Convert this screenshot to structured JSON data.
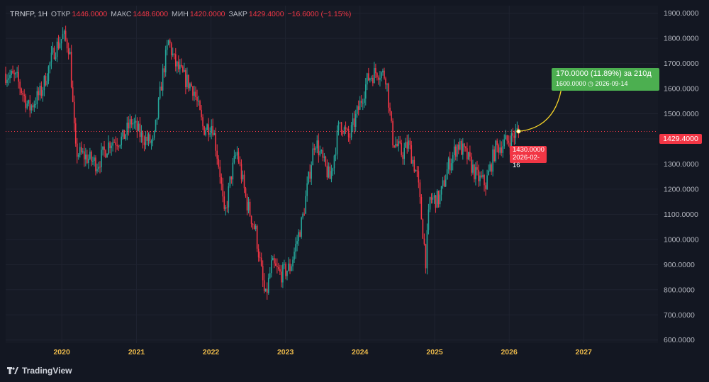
{
  "legend": {
    "symbol": "TRNFP, 1Н",
    "open_label": "ОТКР",
    "open": "1446.0000",
    "high_label": "МАКС",
    "high": "1448.6000",
    "low_label": "МИН",
    "low": "1420.0000",
    "close_label": "ЗАКР",
    "close": "1429.4000",
    "change": "−16.6000 (−1.15%)"
  },
  "labels": {
    "last_price": "1429.4000",
    "low_price": "1430.0000",
    "low_date": "2026-02-16",
    "target_line1": "170.0000 (11.89%) за 210д",
    "target_line2_price": "1600.0000",
    "target_line2_date": "2026-09-14"
  },
  "brand": "TradingView",
  "colors": {
    "background": "#131722",
    "up": "#26a69a",
    "down": "#f23645",
    "target": "#4caf50",
    "arrow": "#f5d328",
    "axis_text": "#b2b5be"
  },
  "chart_data": {
    "type": "candlestick",
    "title": "",
    "y_ticks": [
      "600.0000",
      "700.0000",
      "800.0000",
      "900.0000",
      "1000.0000",
      "1100.0000",
      "1200.0000",
      "1300.0000",
      "1400.0000",
      "1500.0000",
      "1600.0000",
      "1700.0000",
      "1800.0000",
      "1900.0000"
    ],
    "x_ticks": [
      "2020",
      "2021",
      "2022",
      "2023",
      "2024",
      "2025",
      "2026",
      "2027"
    ],
    "ylim": [
      588,
      1930
    ],
    "xlim": [
      "2019-04-01",
      "2027-12-31"
    ],
    "grid": true,
    "last_price": 1429.4,
    "projection": {
      "from_date": "2026-02-16",
      "from_price": 1430,
      "to_date": "2026-09-14",
      "to_price": 1600
    },
    "anchor_path": [
      [
        "2019-04-01",
        1660
      ],
      [
        "2019-06-01",
        1640
      ],
      [
        "2019-08-01",
        1520
      ],
      [
        "2019-10-01",
        1590
      ],
      [
        "2019-12-01",
        1750
      ],
      [
        "2020-01-15",
        1810
      ],
      [
        "2020-02-15",
        1760
      ],
      [
        "2020-03-15",
        1350
      ],
      [
        "2020-05-01",
        1330
      ],
      [
        "2020-07-01",
        1300
      ],
      [
        "2020-09-01",
        1390
      ],
      [
        "2020-11-01",
        1400
      ],
      [
        "2020-12-15",
        1470
      ],
      [
        "2021-02-01",
        1410
      ],
      [
        "2021-04-01",
        1380
      ],
      [
        "2021-05-15",
        1650
      ],
      [
        "2021-06-15",
        1790
      ],
      [
        "2021-07-15",
        1700
      ],
      [
        "2021-09-01",
        1640
      ],
      [
        "2021-10-15",
        1600
      ],
      [
        "2021-12-01",
        1440
      ],
      [
        "2022-01-15",
        1460
      ],
      [
        "2022-02-22",
        1260
      ],
      [
        "2022-03-15",
        1080
      ],
      [
        "2022-04-15",
        1250
      ],
      [
        "2022-05-15",
        1350
      ],
      [
        "2022-07-01",
        1150
      ],
      [
        "2022-08-15",
        1030
      ],
      [
        "2022-10-01",
        760
      ],
      [
        "2022-11-01",
        900
      ],
      [
        "2022-12-15",
        860
      ],
      [
        "2023-02-01",
        890
      ],
      [
        "2023-04-01",
        1080
      ],
      [
        "2023-06-01",
        1400
      ],
      [
        "2023-07-15",
        1300
      ],
      [
        "2023-08-15",
        1240
      ],
      [
        "2023-10-01",
        1470
      ],
      [
        "2023-11-15",
        1400
      ],
      [
        "2024-01-01",
        1520
      ],
      [
        "2024-02-15",
        1640
      ],
      [
        "2024-04-01",
        1670
      ],
      [
        "2024-05-15",
        1650
      ],
      [
        "2024-06-15",
        1400
      ],
      [
        "2024-08-01",
        1340
      ],
      [
        "2024-09-01",
        1380
      ],
      [
        "2024-10-15",
        1250
      ],
      [
        "2024-11-25",
        920
      ],
      [
        "2024-12-15",
        1160
      ],
      [
        "2025-02-01",
        1160
      ],
      [
        "2025-03-15",
        1290
      ],
      [
        "2025-05-01",
        1380
      ],
      [
        "2025-06-15",
        1330
      ],
      [
        "2025-08-01",
        1250
      ],
      [
        "2025-09-15",
        1220
      ],
      [
        "2025-11-01",
        1360
      ],
      [
        "2026-01-15",
        1400
      ],
      [
        "2026-02-16",
        1429
      ]
    ]
  }
}
